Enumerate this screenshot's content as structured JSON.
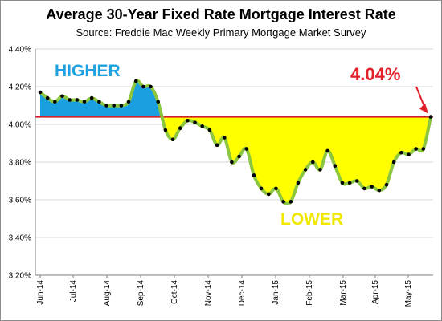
{
  "chart_data": {
    "type": "line",
    "title": "Average 30-Year Fixed Rate Mortgage Interest Rate",
    "subtitle": "Source: Freddie Mac Weekly Primary Mortgage Market Survey",
    "xlabel": "",
    "ylabel": "",
    "ylim": [
      3.2,
      4.4
    ],
    "yticks": [
      "3.20%",
      "3.40%",
      "3.60%",
      "3.80%",
      "4.00%",
      "4.20%",
      "4.40%"
    ],
    "y_tick_values": [
      3.2,
      3.4,
      3.6,
      3.8,
      4.0,
      4.2,
      4.4
    ],
    "xtick_labels": [
      "Jun-14",
      "Jul-14",
      "Aug-14",
      "Sep-14",
      "Oct-14",
      "Nov-14",
      "Dec-14",
      "Jan-15",
      "Feb-15",
      "Mar-15",
      "Apr-15",
      "May-15"
    ],
    "reference_line": 4.04,
    "series": [
      {
        "values": [
          4.17,
          4.14,
          4.12,
          4.15,
          4.13,
          4.13,
          4.12,
          4.14,
          4.12,
          4.1,
          4.1,
          4.1,
          4.12,
          4.23,
          4.2,
          4.2,
          4.12,
          3.97,
          3.92,
          3.98,
          4.02,
          4.01,
          3.99,
          3.97,
          3.89,
          3.93,
          3.8,
          3.83,
          3.87,
          3.73,
          3.66,
          3.63,
          3.66,
          3.59,
          3.59,
          3.69,
          3.76,
          3.8,
          3.76,
          3.86,
          3.78,
          3.69,
          3.69,
          3.7,
          3.66,
          3.67,
          3.65,
          3.68,
          3.8,
          3.85,
          3.84,
          3.87,
          3.87,
          4.04
        ]
      }
    ],
    "annotations": {
      "higher": "HIGHER",
      "lower": "LOWER",
      "latest": "4.04%"
    },
    "colors": {
      "above_fill": "#1a9fe0",
      "below_fill": "#ffff00",
      "line": "#8cc63e",
      "reference_line": "#d0202b",
      "points": "#000000",
      "annotation_value": "#e1202a",
      "annotation_higher": "#1da1e2",
      "annotation_lower": "#f0e800"
    }
  }
}
